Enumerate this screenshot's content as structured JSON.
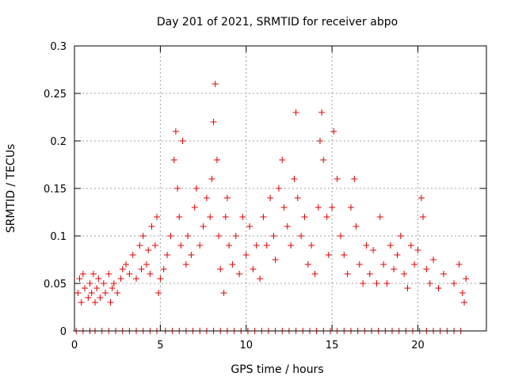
{
  "chart_data": {
    "type": "scatter",
    "title": "Day 201 of 2021, SRMTID for receiver abpo",
    "xlabel": "GPS time / hours",
    "ylabel": "SRMTID / TECUs",
    "xlim": [
      0,
      23.99
    ],
    "ylim": [
      0,
      0.3
    ],
    "xticks": [
      "0",
      "5",
      "10",
      "15",
      "20"
    ],
    "yticks": [
      "0",
      "0.05",
      "0.1",
      "0.15",
      "0.2",
      "0.25",
      "0.3"
    ],
    "grid": true,
    "marker": "+",
    "color": "#e00000",
    "series": [
      {
        "name": "SRMTID",
        "points": [
          [
            0.2,
            0.04
          ],
          [
            0.3,
            0.055
          ],
          [
            0.4,
            0.03
          ],
          [
            0.5,
            0.06
          ],
          [
            0.6,
            0.045
          ],
          [
            0.8,
            0.035
          ],
          [
            0.9,
            0.05
          ],
          [
            1.0,
            0.04
          ],
          [
            1.1,
            0.06
          ],
          [
            1.2,
            0.03
          ],
          [
            1.3,
            0.045
          ],
          [
            1.4,
            0.055
          ],
          [
            1.5,
            0.035
          ],
          [
            1.7,
            0.05
          ],
          [
            1.8,
            0.04
          ],
          [
            2.0,
            0.06
          ],
          [
            2.1,
            0.03
          ],
          [
            2.2,
            0.045
          ],
          [
            2.3,
            0.05
          ],
          [
            2.5,
            0.04
          ],
          [
            2.7,
            0.055
          ],
          [
            2.8,
            0.065
          ],
          [
            3.0,
            0.07
          ],
          [
            3.2,
            0.06
          ],
          [
            3.4,
            0.08
          ],
          [
            3.6,
            0.055
          ],
          [
            3.8,
            0.09
          ],
          [
            3.9,
            0.065
          ],
          [
            4.0,
            0.1
          ],
          [
            4.2,
            0.07
          ],
          [
            4.3,
            0.085
          ],
          [
            4.4,
            0.06
          ],
          [
            4.5,
            0.11
          ],
          [
            4.7,
            0.09
          ],
          [
            4.8,
            0.12
          ],
          [
            4.9,
            0.04
          ],
          [
            5.0,
            0.055
          ],
          [
            5.2,
            0.065
          ],
          [
            5.4,
            0.08
          ],
          [
            5.6,
            0.1
          ],
          [
            5.8,
            0.18
          ],
          [
            5.9,
            0.21
          ],
          [
            6.0,
            0.15
          ],
          [
            6.1,
            0.12
          ],
          [
            6.2,
            0.09
          ],
          [
            6.3,
            0.2
          ],
          [
            6.5,
            0.07
          ],
          [
            6.6,
            0.1
          ],
          [
            6.8,
            0.08
          ],
          [
            7.0,
            0.13
          ],
          [
            7.1,
            0.15
          ],
          [
            7.3,
            0.09
          ],
          [
            7.5,
            0.11
          ],
          [
            7.7,
            0.14
          ],
          [
            7.9,
            0.12
          ],
          [
            8.0,
            0.16
          ],
          [
            8.1,
            0.22
          ],
          [
            8.2,
            0.26
          ],
          [
            8.3,
            0.18
          ],
          [
            8.4,
            0.1
          ],
          [
            8.5,
            0.065
          ],
          [
            8.7,
            0.04
          ],
          [
            8.8,
            0.12
          ],
          [
            8.9,
            0.14
          ],
          [
            9.0,
            0.09
          ],
          [
            9.2,
            0.07
          ],
          [
            9.4,
            0.1
          ],
          [
            9.6,
            0.06
          ],
          [
            9.8,
            0.12
          ],
          [
            10.0,
            0.08
          ],
          [
            10.2,
            0.11
          ],
          [
            10.4,
            0.065
          ],
          [
            10.6,
            0.09
          ],
          [
            10.8,
            0.055
          ],
          [
            11.0,
            0.12
          ],
          [
            11.2,
            0.09
          ],
          [
            11.4,
            0.14
          ],
          [
            11.6,
            0.1
          ],
          [
            11.7,
            0.075
          ],
          [
            11.9,
            0.15
          ],
          [
            12.1,
            0.18
          ],
          [
            12.2,
            0.13
          ],
          [
            12.4,
            0.11
          ],
          [
            12.6,
            0.09
          ],
          [
            12.8,
            0.16
          ],
          [
            12.9,
            0.23
          ],
          [
            13.0,
            0.14
          ],
          [
            13.2,
            0.1
          ],
          [
            13.4,
            0.12
          ],
          [
            13.6,
            0.07
          ],
          [
            13.8,
            0.09
          ],
          [
            14.0,
            0.06
          ],
          [
            14.2,
            0.13
          ],
          [
            14.3,
            0.2
          ],
          [
            14.4,
            0.23
          ],
          [
            14.5,
            0.18
          ],
          [
            14.7,
            0.12
          ],
          [
            14.8,
            0.08
          ],
          [
            15.0,
            0.13
          ],
          [
            15.1,
            0.21
          ],
          [
            15.3,
            0.16
          ],
          [
            15.5,
            0.1
          ],
          [
            15.7,
            0.08
          ],
          [
            15.9,
            0.06
          ],
          [
            16.1,
            0.13
          ],
          [
            16.3,
            0.16
          ],
          [
            16.4,
            0.11
          ],
          [
            16.6,
            0.07
          ],
          [
            16.8,
            0.05
          ],
          [
            17.0,
            0.09
          ],
          [
            17.2,
            0.06
          ],
          [
            17.4,
            0.085
          ],
          [
            17.6,
            0.05
          ],
          [
            17.8,
            0.12
          ],
          [
            18.0,
            0.07
          ],
          [
            18.2,
            0.05
          ],
          [
            18.4,
            0.09
          ],
          [
            18.6,
            0.065
          ],
          [
            18.8,
            0.08
          ],
          [
            19.0,
            0.1
          ],
          [
            19.2,
            0.06
          ],
          [
            19.4,
            0.045
          ],
          [
            19.6,
            0.09
          ],
          [
            19.8,
            0.07
          ],
          [
            20.0,
            0.085
          ],
          [
            20.2,
            0.14
          ],
          [
            20.3,
            0.12
          ],
          [
            20.5,
            0.065
          ],
          [
            20.7,
            0.05
          ],
          [
            20.9,
            0.075
          ],
          [
            21.2,
            0.045
          ],
          [
            21.5,
            0.06
          ],
          [
            22.1,
            0.05
          ],
          [
            22.4,
            0.07
          ],
          [
            22.6,
            0.04
          ],
          [
            22.7,
            0.03
          ],
          [
            22.8,
            0.055
          ]
        ],
        "zero_hours": [
          0.1,
          0.5,
          0.9,
          1.2,
          1.6,
          2.0,
          2.4,
          2.8,
          3.2,
          3.6,
          4.0,
          4.4,
          4.8,
          5.3,
          5.7,
          6.1,
          6.5,
          6.9,
          7.3,
          7.7,
          8.1,
          8.5,
          8.9,
          9.3,
          9.7,
          10.1,
          10.5,
          10.9,
          11.3,
          11.7,
          12.1,
          12.5,
          12.9,
          13.3,
          13.7,
          14.1,
          14.5,
          14.9,
          15.3,
          15.7,
          16.1,
          16.5,
          16.9,
          17.3,
          17.7,
          18.1,
          18.5,
          18.9,
          19.3,
          19.7,
          20.1,
          20.5,
          20.9,
          21.3,
          21.7,
          22.1,
          22.5
        ]
      }
    ]
  }
}
